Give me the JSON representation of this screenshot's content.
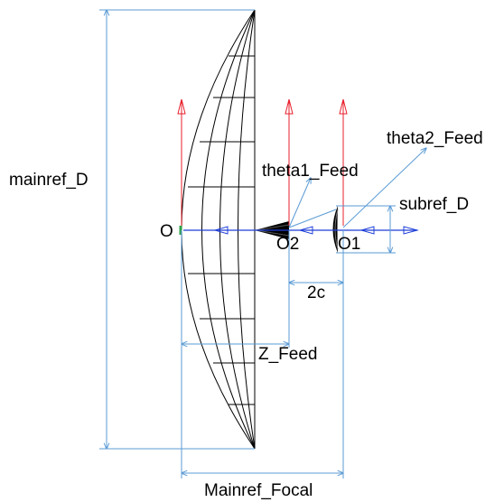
{
  "labels": {
    "mainref_D": "mainref_D",
    "origin_O": "O",
    "O2": "O2",
    "O1": "O1",
    "theta1_Feed": "theta1_Feed",
    "theta2_Feed": "theta2_Feed",
    "subref_D": "subref_D",
    "two_c": "2c",
    "Z_Feed": "Z_Feed",
    "Mainref_Focal": "Mainref_Focal"
  },
  "colors": {
    "dimension_line": "#5b9bd5",
    "axis_z": "#1f3fd8",
    "axis_vertical": "#e81f2b",
    "mesh": "#000000",
    "background": "#ffffff"
  }
}
